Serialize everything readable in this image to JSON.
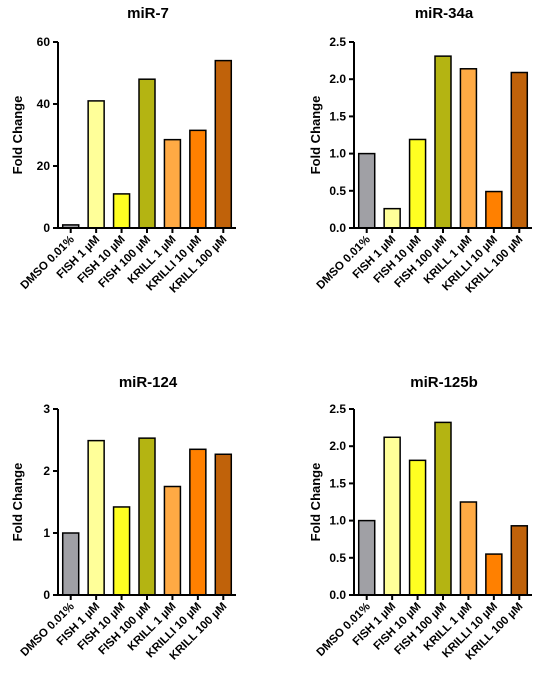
{
  "chart_data": [
    {
      "type": "bar",
      "title": "miR-7",
      "xlabel": "",
      "ylabel": "Fold Change",
      "ylim": [
        0,
        60
      ],
      "yticks": [
        "0",
        "20",
        "40",
        "60"
      ],
      "categories": [
        "DMSO 0.01%",
        "FISH 1 µM",
        "FISH 10 µM",
        "FISH 100 µM",
        "KRILL 1 µM",
        "KRILLI 10 µM",
        "KRILL 100 µM"
      ],
      "values": [
        1,
        41,
        11,
        48,
        28.5,
        31.5,
        54
      ],
      "grid": false,
      "legend": "none"
    },
    {
      "type": "bar",
      "title": "miR-34a",
      "xlabel": "",
      "ylabel": "Fold Change",
      "ylim": [
        0,
        2.5
      ],
      "yticks": [
        "0.0",
        "0.5",
        "1.0",
        "1.5",
        "2.0",
        "2.5"
      ],
      "categories": [
        "DMSO 0.01%",
        "FISH 1 µM",
        "FISH 10 µM",
        "FISH 100 µM",
        "KRILL 1 µM",
        "KRILLI 10 µM",
        "KRILL 100 µM"
      ],
      "values": [
        1.0,
        0.26,
        1.19,
        2.31,
        2.14,
        0.49,
        2.09
      ],
      "grid": false,
      "legend": "none"
    },
    {
      "type": "bar",
      "title": "miR-124",
      "xlabel": "",
      "ylabel": "Fold Change",
      "ylim": [
        0,
        3
      ],
      "yticks": [
        "0",
        "1",
        "2",
        "3"
      ],
      "categories": [
        "DMSO 0.01%",
        "FISH 1 µM",
        "FISH 10 µM",
        "FISH 100 µM",
        "KRILL 1 µM",
        "KRILLI 10 µM",
        "KRILL 100 µM"
      ],
      "values": [
        1.0,
        2.49,
        1.42,
        2.53,
        1.75,
        2.35,
        2.27
      ],
      "grid": false,
      "legend": "none"
    },
    {
      "type": "bar",
      "title": "miR-125b",
      "xlabel": "",
      "ylabel": "Fold Change",
      "ylim": [
        0,
        2.5
      ],
      "yticks": [
        "0.0",
        "0.5",
        "1.0",
        "1.5",
        "2.0",
        "2.5"
      ],
      "categories": [
        "DMSO 0.01%",
        "FISH 1 µM",
        "FISH 10 µM",
        "FISH 100 µM",
        "KRILL 1 µM",
        "KRILLI 10 µM",
        "KRILL 100 µM"
      ],
      "values": [
        1.0,
        2.12,
        1.81,
        2.32,
        1.25,
        0.55,
        0.93
      ],
      "grid": false,
      "legend": "none"
    }
  ],
  "bar_colors": [
    "#a0a0a5",
    "#ffff99",
    "#ffff22",
    "#b4b412",
    "#ffaa44",
    "#ff8000",
    "#c0620a"
  ]
}
